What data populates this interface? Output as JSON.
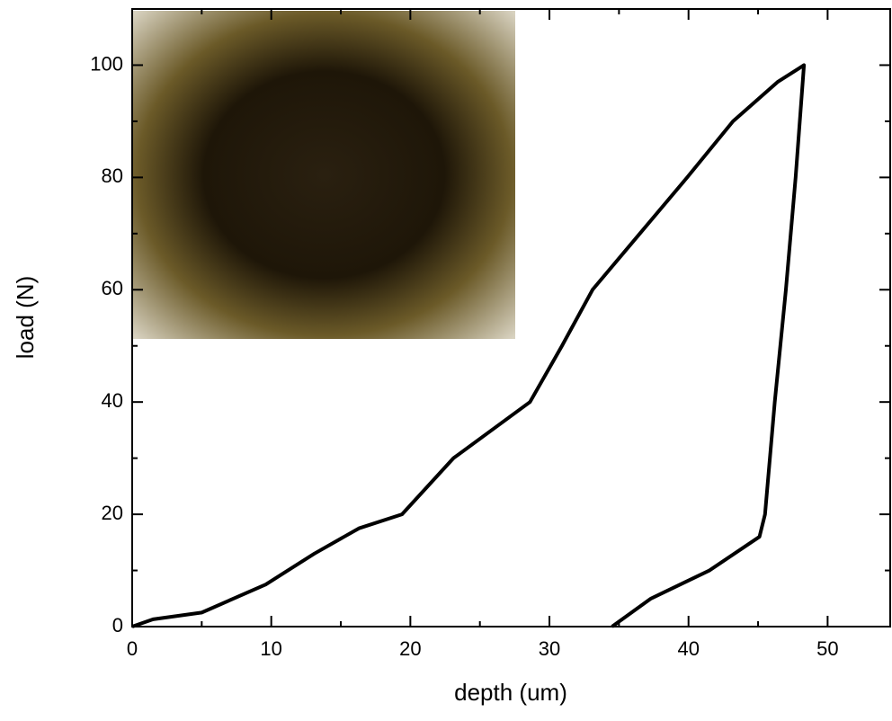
{
  "chart_data": {
    "type": "line",
    "xlabel": "depth (um)",
    "ylabel": "load (N)",
    "xlim": [
      0,
      54.5
    ],
    "ylim": [
      0,
      110
    ],
    "xticks": [
      0,
      10,
      20,
      30,
      40,
      50
    ],
    "yticks": [
      0,
      20,
      40,
      60,
      80,
      100
    ],
    "xminorticks": [
      5,
      15,
      25,
      35,
      45
    ],
    "yminorticks": [
      10,
      30,
      50,
      70,
      90
    ],
    "series": [
      {
        "color": "#000000",
        "x": [
          0,
          1.5,
          5,
          9.6,
          13.1,
          16.3,
          19.4,
          23.1,
          28.6,
          30.9,
          33.1,
          36.5,
          39.9,
          43.2,
          46.4,
          48.3,
          48.0,
          47.7,
          47.0,
          46.2,
          45.5,
          45.1,
          41.5,
          37.3,
          34.5
        ],
        "values": [
          0,
          1.3,
          2.5,
          7.5,
          13,
          17.5,
          20,
          30,
          40,
          50,
          60,
          70,
          80,
          90,
          97,
          100,
          90,
          80,
          60,
          40,
          20,
          16,
          10,
          5,
          0
        ]
      }
    ]
  }
}
